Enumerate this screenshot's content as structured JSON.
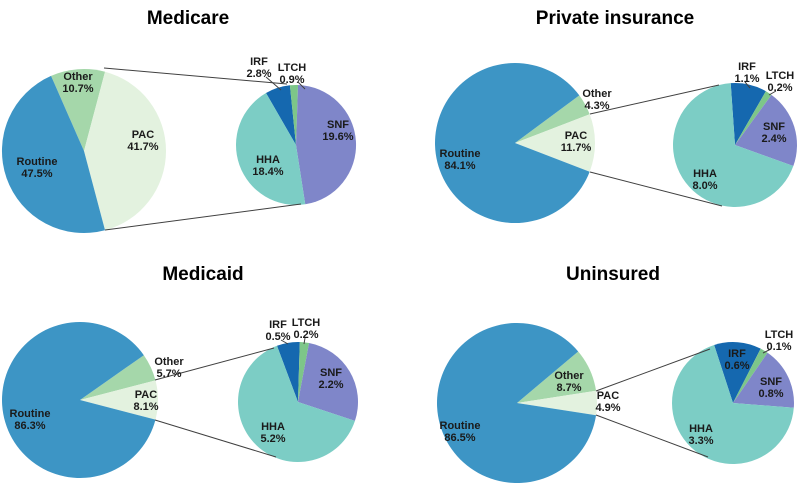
{
  "page": {
    "background": "#FFFFFF",
    "text_color": "#1A1A1A",
    "line_color": "#404040"
  },
  "colors": {
    "routine": "#3D95C5",
    "pac": "#E3F2DF",
    "other": "#A5D7AA",
    "irf": "#1568AF",
    "ltch": "#7DC689",
    "snf": "#7F86C9",
    "hha": "#7CCDC5"
  },
  "chart_data": [
    {
      "type": "pie",
      "variant": "pie-of-pie",
      "title": "Medicare",
      "detail_of": "PAC",
      "main_slices": [
        {
          "label": "Routine",
          "value": 47.5,
          "pct": "47.5%",
          "color_key": "routine"
        },
        {
          "label": "PAC",
          "value": 41.7,
          "pct": "41.7%",
          "color_key": "pac"
        },
        {
          "label": "Other",
          "value": 10.7,
          "pct": "10.7%",
          "color_key": "other"
        }
      ],
      "detail_slices": [
        {
          "label": "IRF",
          "value": 2.8,
          "pct": "2.8%",
          "color_key": "irf"
        },
        {
          "label": "LTCH",
          "value": 0.9,
          "pct": "0.9%",
          "color_key": "ltch"
        },
        {
          "label": "SNF",
          "value": 19.6,
          "pct": "19.6%",
          "color_key": "snf"
        },
        {
          "label": "HHA",
          "value": 18.4,
          "pct": "18.4%",
          "color_key": "hha"
        }
      ]
    },
    {
      "type": "pie",
      "variant": "pie-of-pie",
      "title": "Private insurance",
      "detail_of": "PAC",
      "main_slices": [
        {
          "label": "Routine",
          "value": 84.1,
          "pct": "84.1%",
          "color_key": "routine"
        },
        {
          "label": "PAC",
          "value": 11.7,
          "pct": "11.7%",
          "color_key": "pac"
        },
        {
          "label": "Other",
          "value": 4.3,
          "pct": "4.3%",
          "color_key": "other"
        }
      ],
      "detail_slices": [
        {
          "label": "IRF",
          "value": 1.1,
          "pct": "1.1%",
          "color_key": "irf"
        },
        {
          "label": "LTCH",
          "value": 0.2,
          "pct": "0.2%",
          "color_key": "ltch"
        },
        {
          "label": "SNF",
          "value": 2.4,
          "pct": "2.4%",
          "color_key": "snf"
        },
        {
          "label": "HHA",
          "value": 8.0,
          "pct": "8.0%",
          "color_key": "hha"
        }
      ]
    },
    {
      "type": "pie",
      "variant": "pie-of-pie",
      "title": "Medicaid",
      "detail_of": "PAC",
      "main_slices": [
        {
          "label": "Routine",
          "value": 86.3,
          "pct": "86.3%",
          "color_key": "routine"
        },
        {
          "label": "PAC",
          "value": 8.1,
          "pct": "8.1%",
          "color_key": "pac"
        },
        {
          "label": "Other",
          "value": 5.7,
          "pct": "5.7%",
          "color_key": "other"
        }
      ],
      "detail_slices": [
        {
          "label": "IRF",
          "value": 0.5,
          "pct": "0.5%",
          "color_key": "irf"
        },
        {
          "label": "LTCH",
          "value": 0.2,
          "pct": "0.2%",
          "color_key": "ltch"
        },
        {
          "label": "SNF",
          "value": 2.2,
          "pct": "2.2%",
          "color_key": "snf"
        },
        {
          "label": "HHA",
          "value": 5.2,
          "pct": "5.2%",
          "color_key": "hha"
        }
      ]
    },
    {
      "type": "pie",
      "variant": "pie-of-pie",
      "title": "Uninsured",
      "detail_of": "PAC",
      "main_slices": [
        {
          "label": "Routine",
          "value": 86.5,
          "pct": "86.5%",
          "color_key": "routine"
        },
        {
          "label": "PAC",
          "value": 4.9,
          "pct": "4.9%",
          "color_key": "pac"
        },
        {
          "label": "Other",
          "value": 8.7,
          "pct": "8.7%",
          "color_key": "other"
        }
      ],
      "detail_slices": [
        {
          "label": "IRF",
          "value": 0.6,
          "pct": "0.6%",
          "color_key": "irf"
        },
        {
          "label": "LTCH",
          "value": 0.1,
          "pct": "0.1%",
          "color_key": "ltch"
        },
        {
          "label": "SNF",
          "value": 0.8,
          "pct": "0.8%",
          "color_key": "snf"
        },
        {
          "label": "HHA",
          "value": 3.3,
          "pct": "3.3%",
          "color_key": "hha"
        }
      ]
    }
  ]
}
